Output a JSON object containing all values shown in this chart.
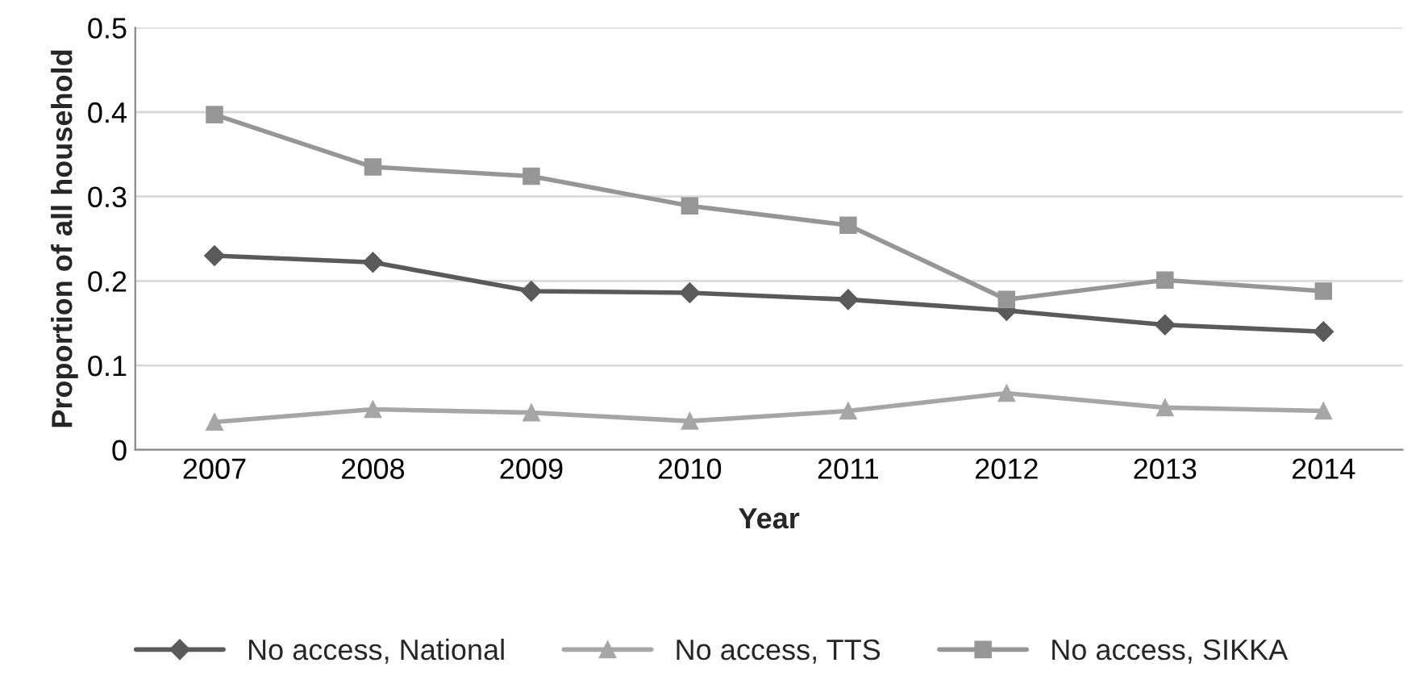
{
  "chart_data": {
    "type": "line",
    "xlabel": "Year",
    "ylabel": "Proportion of all household",
    "categories": [
      "2007",
      "2008",
      "2009",
      "2010",
      "2011",
      "2012",
      "2013",
      "2014"
    ],
    "series": [
      {
        "name": "No access, National",
        "color": "#5a5a5a",
        "marker": "diamond",
        "values": [
          0.23,
          0.222,
          0.188,
          0.186,
          0.178,
          0.165,
          0.148,
          0.14
        ]
      },
      {
        "name": "No access, TTS",
        "color": "#a6a6a6",
        "marker": "triangle",
        "values": [
          0.033,
          0.048,
          0.044,
          0.034,
          0.046,
          0.067,
          0.05,
          0.046
        ]
      },
      {
        "name": "No access, SIKKA",
        "color": "#969696",
        "marker": "square",
        "values": [
          0.397,
          0.335,
          0.324,
          0.289,
          0.266,
          0.178,
          0.201,
          0.188
        ]
      }
    ],
    "ylim": [
      0,
      0.5
    ],
    "yticks": [
      0,
      0.1,
      0.2,
      0.3,
      0.4,
      0.5
    ],
    "grid": "y",
    "legend": "bottom",
    "line_style": "solid"
  }
}
